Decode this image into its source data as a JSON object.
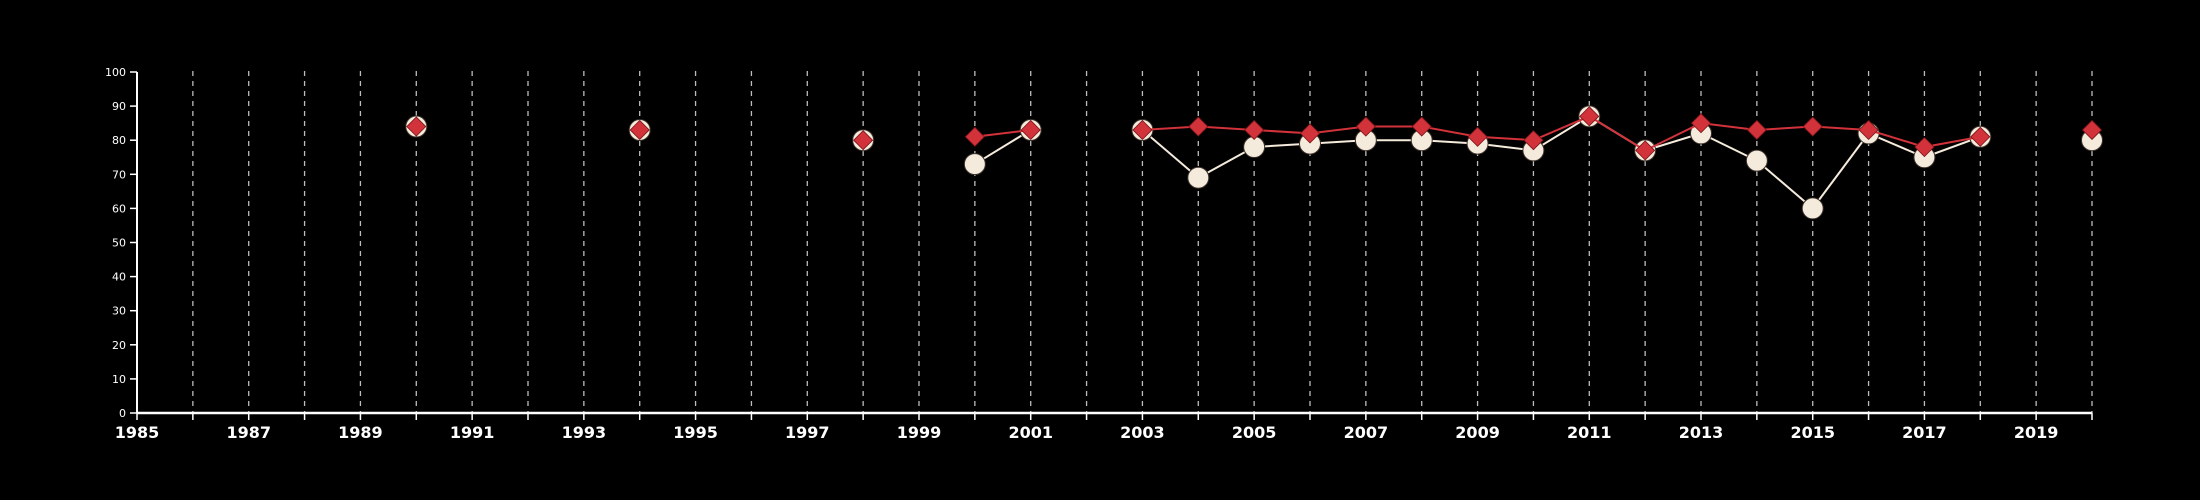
{
  "chart_data": {
    "type": "line",
    "title": "",
    "xlabel": "",
    "ylabel": "",
    "xlim": [
      1985,
      2020
    ],
    "ylim": [
      0,
      100
    ],
    "x_ticks": [
      "1985",
      "1987",
      "1989",
      "1991",
      "1993",
      "1995",
      "1997",
      "1999",
      "2001",
      "2003",
      "2005",
      "2007",
      "2009",
      "2011",
      "2013",
      "2015",
      "2017",
      "2019"
    ],
    "y_ticks": [
      "0",
      "10",
      "20",
      "30",
      "40",
      "50",
      "60",
      "70",
      "80",
      "90",
      "100"
    ],
    "grid": "vertical dashed lines at every year",
    "background": "#000000",
    "series": [
      {
        "marker": "circle",
        "color": "#f5ebdc",
        "points": [
          [
            1990,
            84
          ],
          [
            1994,
            83
          ],
          [
            1998,
            80
          ],
          [
            2000,
            73
          ],
          [
            2001,
            83
          ],
          [
            2003,
            83
          ],
          [
            2004,
            69
          ],
          [
            2005,
            78
          ],
          [
            2006,
            79
          ],
          [
            2007,
            80
          ],
          [
            2008,
            80
          ],
          [
            2009,
            79
          ],
          [
            2010,
            77
          ],
          [
            2011,
            87
          ],
          [
            2012,
            77
          ],
          [
            2013,
            82
          ],
          [
            2014,
            74
          ],
          [
            2015,
            60
          ],
          [
            2016,
            82
          ],
          [
            2017,
            75
          ],
          [
            2018,
            81
          ],
          [
            2020,
            80
          ]
        ]
      },
      {
        "marker": "diamond",
        "color": "#d2323a",
        "points": [
          [
            1990,
            84
          ],
          [
            1994,
            83
          ],
          [
            1998,
            80
          ],
          [
            2000,
            81
          ],
          [
            2001,
            83
          ],
          [
            2003,
            83
          ],
          [
            2004,
            84
          ],
          [
            2005,
            83
          ],
          [
            2006,
            82
          ],
          [
            2007,
            84
          ],
          [
            2008,
            84
          ],
          [
            2009,
            81
          ],
          [
            2010,
            80
          ],
          [
            2011,
            87
          ],
          [
            2012,
            77
          ],
          [
            2013,
            85
          ],
          [
            2014,
            83
          ],
          [
            2015,
            84
          ],
          [
            2016,
            83
          ],
          [
            2017,
            78
          ],
          [
            2018,
            81
          ],
          [
            2020,
            83
          ]
        ]
      }
    ]
  }
}
